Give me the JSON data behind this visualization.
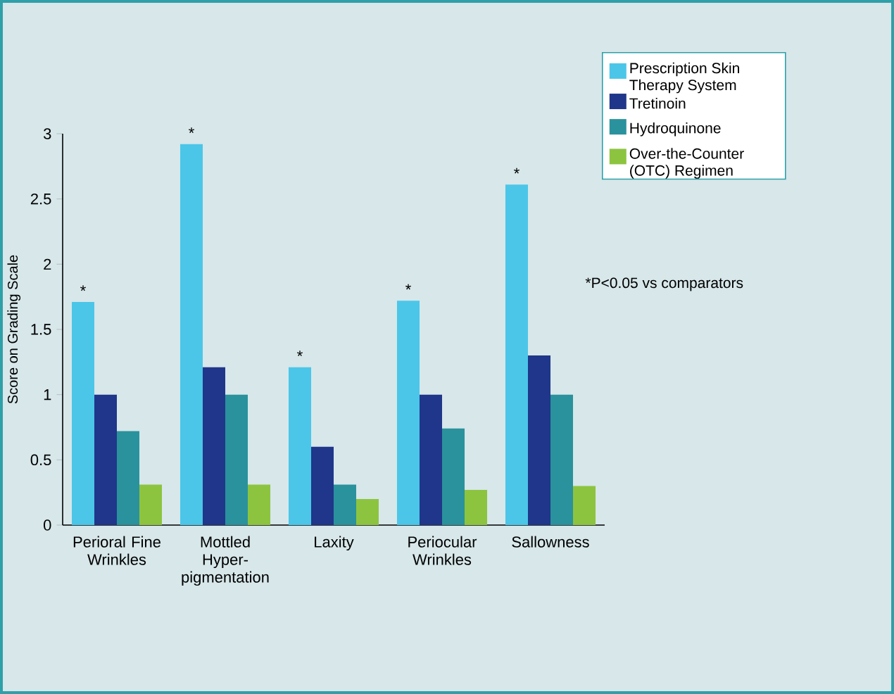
{
  "chart_data": {
    "type": "bar",
    "ylabel": "Score on Grading Scale",
    "categories": [
      "Perioral Fine Wrinkles",
      "Mottled Hyper-pigmentation",
      "Laxity",
      "Periocular Wrinkles",
      "Sallowness"
    ],
    "series": [
      {
        "name": "Prescription Skin Therapy System",
        "color": "#4bc6e8",
        "values": [
          1.71,
          2.92,
          1.21,
          1.72,
          2.61
        ]
      },
      {
        "name": "Tretinoin",
        "color": "#1f368a",
        "values": [
          1.0,
          1.21,
          0.6,
          1.0,
          1.3
        ]
      },
      {
        "name": "Hydroquinone",
        "color": "#2a929c",
        "values": [
          0.72,
          1.0,
          0.31,
          0.74,
          1.0
        ]
      },
      {
        "name": "Over-the-Counter (OTC) Regimen",
        "color": "#8dc43f",
        "values": [
          0.31,
          0.31,
          0.2,
          0.27,
          0.3
        ]
      }
    ],
    "ylim": [
      0,
      3
    ],
    "yticks": [
      0,
      0.5,
      1,
      1.5,
      2,
      2.5,
      3
    ],
    "legend": "top right",
    "grid": false,
    "annotations": [
      "*",
      "*",
      "*",
      "*",
      "*",
      "*P<0.05 vs comparators"
    ]
  }
}
